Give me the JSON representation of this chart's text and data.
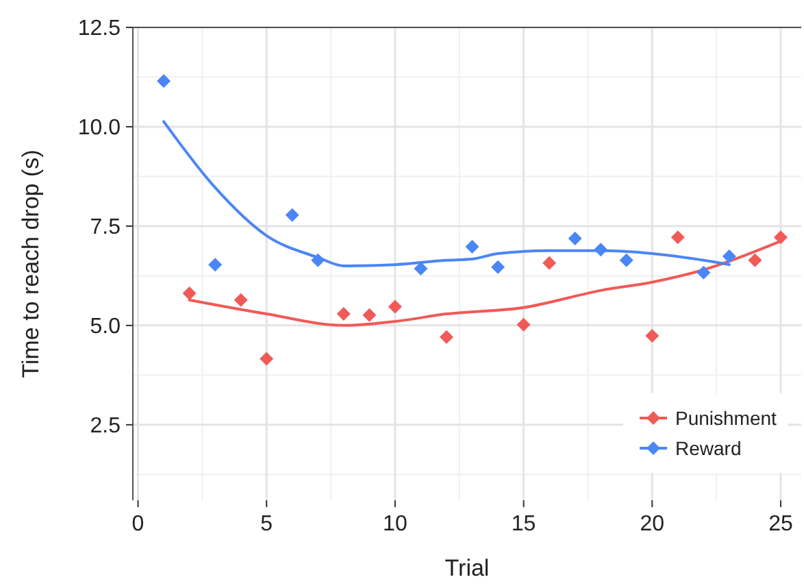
{
  "chart_data": {
    "type": "scatter",
    "xlabel": "Trial",
    "ylabel": "Time to reach drop (s)",
    "xlim": [
      -0.2,
      25.8
    ],
    "ylim": [
      0.6,
      12.5
    ],
    "xticks": [
      0,
      5,
      10,
      15,
      20,
      25
    ],
    "yticks": [
      {
        "value": 2.5,
        "label": "2.5"
      },
      {
        "value": 5,
        "label": "5.0"
      },
      {
        "value": 7.5,
        "label": "7.5"
      },
      {
        "value": 10,
        "label": "10.0"
      },
      {
        "value": 12.5,
        "label": "12.5"
      }
    ],
    "grid": true,
    "legend": "bottom right",
    "marker": "diamond",
    "series": [
      {
        "name": "Punishment",
        "color": "#f05a57",
        "x": [
          2,
          4,
          5,
          8,
          9,
          10,
          12,
          15,
          16,
          20,
          21,
          24,
          25
        ],
        "values": [
          5.81,
          5.64,
          4.16,
          5.29,
          5.26,
          5.47,
          4.71,
          5.02,
          6.57,
          4.74,
          7.22,
          6.64,
          7.22
        ]
      },
      {
        "name": "Reward",
        "color": "#4a86f5",
        "x": [
          1,
          3,
          6,
          7,
          11,
          13,
          14,
          17,
          18,
          19,
          22,
          23
        ],
        "values": [
          11.15,
          6.53,
          7.78,
          6.64,
          6.43,
          6.98,
          6.47,
          7.19,
          6.91,
          6.64,
          6.33,
          6.74
        ]
      },
      {
        "type": "line",
        "marker": "none",
        "color": "#f05a57",
        "x": [
          2,
          5,
          8,
          10,
          12,
          15,
          18,
          20,
          22,
          25
        ],
        "values": [
          5.64,
          5.29,
          5.0,
          5.1,
          5.29,
          5.45,
          5.88,
          6.09,
          6.4,
          7.12
        ]
      },
      {
        "type": "line",
        "marker": "none",
        "color": "#4a86f5",
        "x": [
          1,
          3,
          5,
          7,
          8,
          10,
          12,
          13,
          14,
          16,
          18,
          20,
          22,
          23
        ],
        "values": [
          10.13,
          8.47,
          7.26,
          6.71,
          6.5,
          6.53,
          6.64,
          6.67,
          6.81,
          6.88,
          6.88,
          6.81,
          6.64,
          6.53
        ]
      }
    ]
  }
}
